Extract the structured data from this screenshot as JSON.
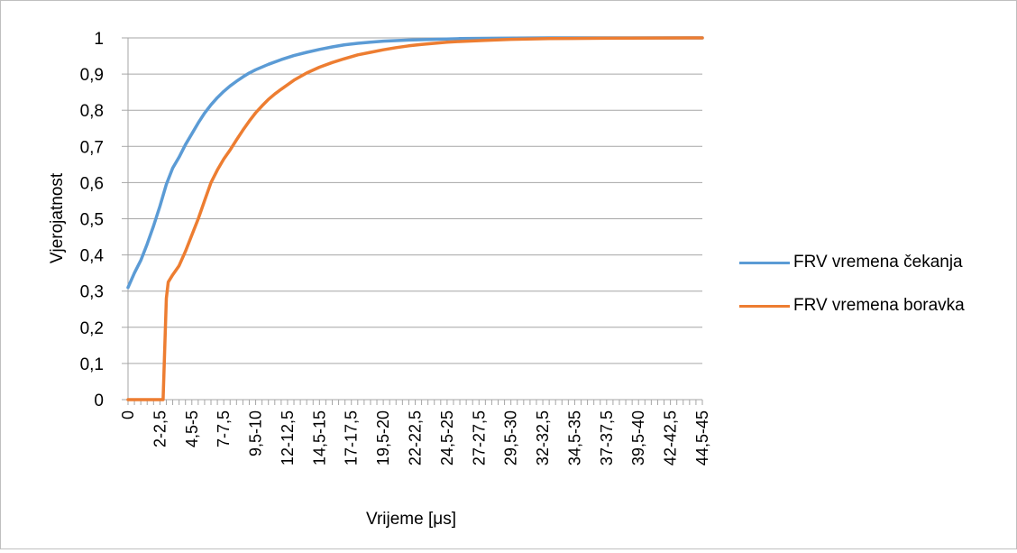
{
  "chart_data": {
    "type": "line",
    "title": "",
    "xlabel": "Vrijeme [μs]",
    "ylabel": "Vjerojatnost",
    "ylim": [
      0,
      1
    ],
    "y_ticks": [
      "0",
      "0,1",
      "0,2",
      "0,3",
      "0,4",
      "0,5",
      "0,6",
      "0,7",
      "0,8",
      "0,9",
      "1"
    ],
    "x_tick_labels": [
      "0",
      "2-2,5",
      "4,5-5",
      "7-7,5",
      "9,5-10",
      "12-12,5",
      "14,5-15",
      "17-17,5",
      "19,5-20",
      "22-22,5",
      "24,5-25",
      "27-27,5",
      "29,5-30",
      "32-32,5",
      "34,5-35",
      "37-37,5",
      "39,5-40",
      "42-42,5",
      "44,5-45"
    ],
    "x_tick_positions": [
      0,
      5,
      10,
      15,
      20,
      25,
      30,
      35,
      40,
      45,
      50,
      55,
      60,
      65,
      70,
      75,
      80,
      85,
      90
    ],
    "x_count": 91,
    "grid": true,
    "legend": "right",
    "series": [
      {
        "name": "FRV vremena čekanja",
        "color": "#5b9bd5",
        "points": [
          [
            0,
            0.31
          ],
          [
            1,
            0.35
          ],
          [
            2,
            0.385
          ],
          [
            3,
            0.43
          ],
          [
            4,
            0.48
          ],
          [
            5,
            0.535
          ],
          [
            6,
            0.595
          ],
          [
            7,
            0.64
          ],
          [
            8,
            0.67
          ],
          [
            9,
            0.705
          ],
          [
            10,
            0.735
          ],
          [
            11,
            0.765
          ],
          [
            12,
            0.792
          ],
          [
            13,
            0.815
          ],
          [
            14,
            0.835
          ],
          [
            15,
            0.852
          ],
          [
            16,
            0.867
          ],
          [
            17,
            0.88
          ],
          [
            18,
            0.892
          ],
          [
            19,
            0.903
          ],
          [
            20,
            0.912
          ],
          [
            22,
            0.927
          ],
          [
            24,
            0.94
          ],
          [
            26,
            0.951
          ],
          [
            28,
            0.96
          ],
          [
            30,
            0.968
          ],
          [
            32,
            0.975
          ],
          [
            34,
            0.981
          ],
          [
            36,
            0.985
          ],
          [
            38,
            0.988
          ],
          [
            40,
            0.991
          ],
          [
            44,
            0.994
          ],
          [
            48,
            0.996
          ],
          [
            52,
            0.998
          ],
          [
            58,
            0.999
          ],
          [
            66,
            1.0
          ],
          [
            90,
            1.0
          ]
        ]
      },
      {
        "name": "FRV vremena boravka",
        "color": "#ed7d31",
        "points": [
          [
            0,
            0.0
          ],
          [
            1,
            0.0
          ],
          [
            2,
            0.0
          ],
          [
            3,
            0.0
          ],
          [
            4,
            0.0
          ],
          [
            5,
            0.0
          ],
          [
            5.5,
            0.0
          ],
          [
            6,
            0.28
          ],
          [
            6.3,
            0.325
          ],
          [
            7,
            0.345
          ],
          [
            8,
            0.37
          ],
          [
            9,
            0.41
          ],
          [
            10,
            0.455
          ],
          [
            11,
            0.5
          ],
          [
            12,
            0.55
          ],
          [
            13,
            0.6
          ],
          [
            14,
            0.635
          ],
          [
            15,
            0.665
          ],
          [
            16,
            0.69
          ],
          [
            17,
            0.718
          ],
          [
            18,
            0.745
          ],
          [
            19,
            0.77
          ],
          [
            20,
            0.793
          ],
          [
            21,
            0.812
          ],
          [
            22,
            0.83
          ],
          [
            23,
            0.845
          ],
          [
            24,
            0.858
          ],
          [
            26,
            0.883
          ],
          [
            28,
            0.903
          ],
          [
            30,
            0.919
          ],
          [
            32,
            0.932
          ],
          [
            34,
            0.943
          ],
          [
            36,
            0.953
          ],
          [
            38,
            0.96
          ],
          [
            40,
            0.967
          ],
          [
            42,
            0.973
          ],
          [
            44,
            0.978
          ],
          [
            46,
            0.982
          ],
          [
            48,
            0.985
          ],
          [
            50,
            0.988
          ],
          [
            52,
            0.99
          ],
          [
            56,
            0.993
          ],
          [
            60,
            0.996
          ],
          [
            66,
            0.998
          ],
          [
            74,
            0.999
          ],
          [
            90,
            1.0
          ]
        ]
      }
    ]
  }
}
